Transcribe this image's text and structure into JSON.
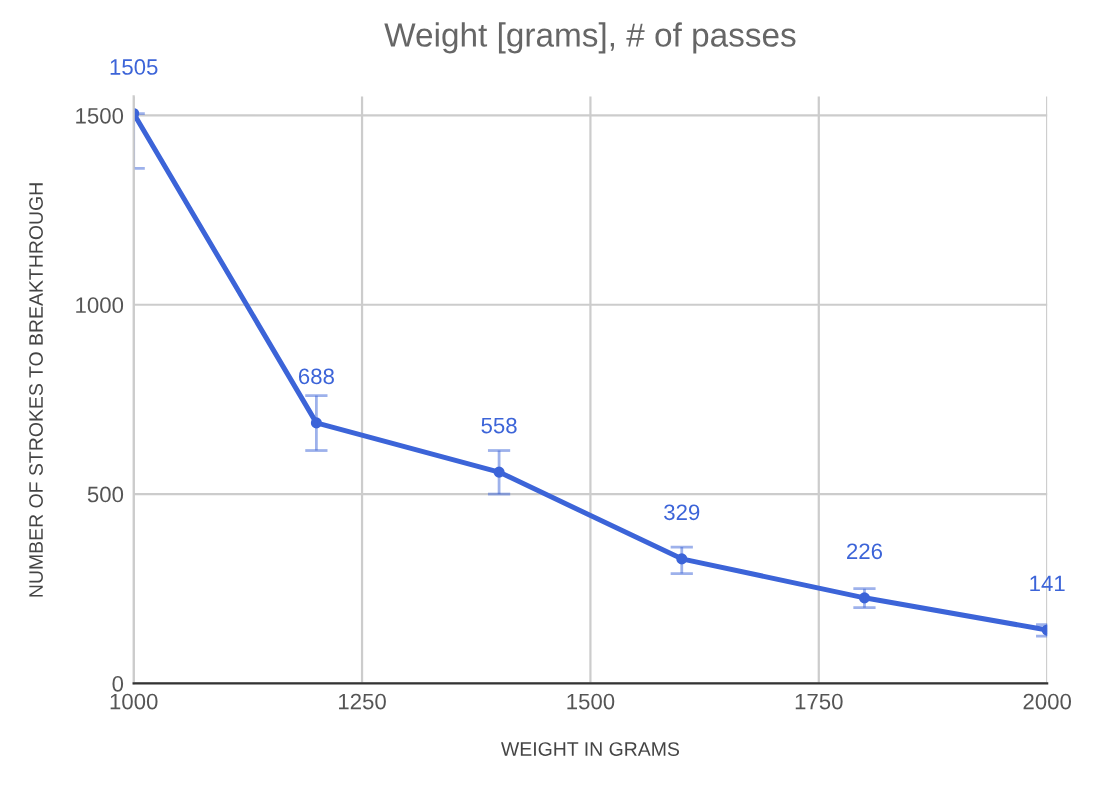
{
  "chart_data": {
    "type": "line",
    "title": "Weight [grams], # of passes",
    "xlabel": "WEIGHT IN GRAMS",
    "ylabel": "NUMBER OF STROKES TO BREAKTHROUGH",
    "x": [
      1000,
      1200,
      1400,
      1600,
      1800,
      2000
    ],
    "series": [
      {
        "color": "#3c64d8",
        "values": [
          1505,
          688,
          558,
          329,
          226,
          141
        ],
        "errors": [
          [
            1360,
            1505
          ],
          [
            615,
            760
          ],
          [
            500,
            615
          ],
          [
            290,
            360
          ],
          [
            200,
            250
          ],
          [
            125,
            155
          ]
        ]
      }
    ],
    "data_labels": true,
    "marker": "circle",
    "xlim": [
      1000,
      2000
    ],
    "xticks": [
      1000,
      1250,
      1500,
      1750,
      2000
    ],
    "ylim": [
      0,
      1550
    ],
    "yticks": [
      0,
      500,
      1000,
      1500
    ],
    "grid": true
  }
}
